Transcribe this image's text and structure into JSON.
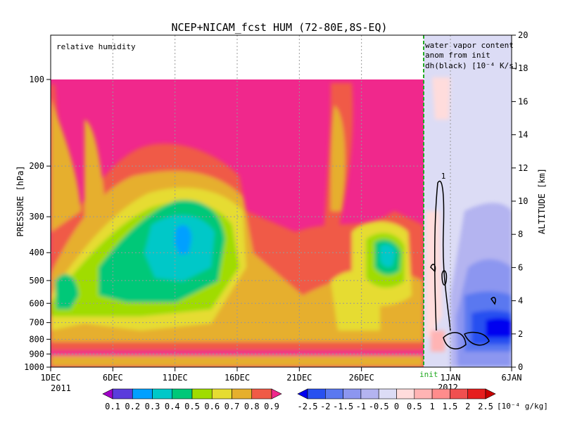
{
  "chart_data": {
    "type": "heatmap",
    "title": "NCEP+NICAM_fcst HUM (72-80E,8S-EQ)",
    "left_panel": {
      "annotation": "relative humidity",
      "ylabel": "PRESSURE [hPa]",
      "y_ticks": [
        "100",
        "200",
        "300",
        "400",
        "500",
        "600",
        "700",
        "800",
        "900",
        "1000"
      ],
      "x_ticks": [
        "1DEC",
        "6DEC",
        "11DEC",
        "16DEC",
        "21DEC",
        "26DEC"
      ],
      "x_year": "2011",
      "x_range": [
        "2011-12-01",
        "2011-12-31"
      ],
      "y_range_hpa": [
        1000,
        100
      ],
      "colorbar": {
        "ticks": [
          "0.1",
          "0.2",
          "0.3",
          "0.4",
          "0.5",
          "0.6",
          "0.7",
          "0.8",
          "0.9"
        ],
        "colors": [
          "#a000c8",
          "#5a3cdc",
          "#00a0ff",
          "#00c8c8",
          "#00c878",
          "#a0dc00",
          "#e6dc32",
          "#e6af2d",
          "#f05a46",
          "#f0288c"
        ]
      }
    },
    "right_panel": {
      "annotation": [
        "water vapor content",
        "anom from init",
        "dh(black) [10⁻⁴ K/s]"
      ],
      "ylabel": "ALTITUDE [km]",
      "y_ticks": [
        "0",
        "2",
        "4",
        "6",
        "8",
        "10",
        "12",
        "14",
        "16",
        "18",
        "20"
      ],
      "y_range_km": [
        0,
        20
      ],
      "x_ticks": [
        "1JAN",
        "6JAN"
      ],
      "x_year": "2012",
      "init_label": "init",
      "contour_label": "1",
      "colorbar": {
        "ticks": [
          "-2.5",
          "-2",
          "-1.5",
          "-1",
          "-0.5",
          "0",
          "0.5",
          "1",
          "1.5",
          "2",
          "2.5"
        ],
        "colors": [
          "#0000f0",
          "#2850f0",
          "#5a78f0",
          "#8c96f0",
          "#b4b4f0",
          "#dcdcf5",
          "#ffdcdc",
          "#ffb4b4",
          "#ff8c8c",
          "#f05050",
          "#e61e1e",
          "#c80000"
        ],
        "units": "[10⁻⁴ g/kg]"
      }
    }
  }
}
